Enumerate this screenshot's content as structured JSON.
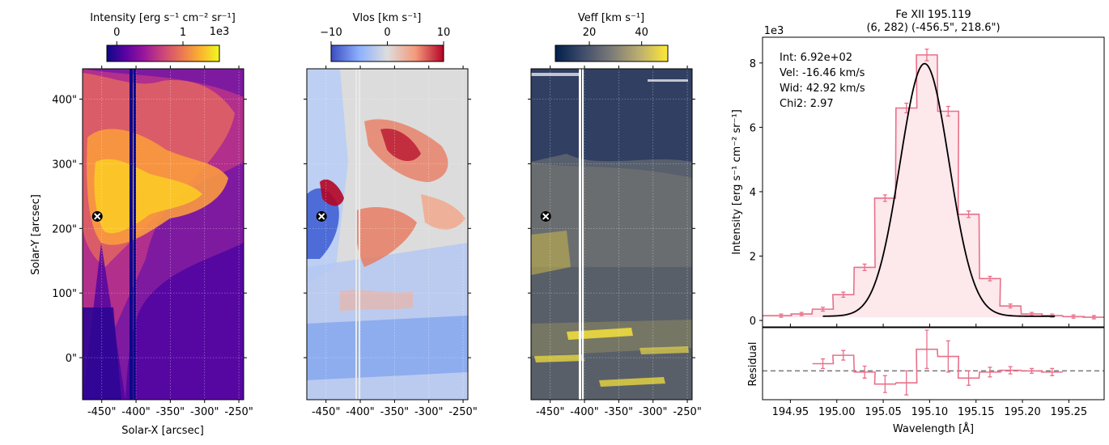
{
  "panels": {
    "intensity": {
      "cbar_label": "Intensity [erg s⁻¹ cm⁻² sr⁻¹]",
      "cbar_ticks": [
        {
          "v": 0,
          "label": "0"
        },
        {
          "v": 1,
          "label": "1"
        }
      ],
      "cbar_range": [
        -0.15,
        1.55
      ],
      "cbar_exponent": "1e3",
      "colormap": [
        "#0d0887",
        "#5b02a3",
        "#9a179b",
        "#cb4678",
        "#eb7852",
        "#fbb32f",
        "#f0f921"
      ]
    },
    "vlos": {
      "cbar_label": "Vlos [km s⁻¹]",
      "cbar_ticks": [
        {
          "v": -10,
          "label": "−10"
        },
        {
          "v": 0,
          "label": "0"
        },
        {
          "v": 10,
          "label": "10"
        }
      ],
      "cbar_range": [
        -10,
        10
      ],
      "colormap": [
        "#3b4cc0",
        "#8db0fe",
        "#dddddd",
        "#f49a7b",
        "#b40426"
      ]
    },
    "veff": {
      "cbar_label": "Veff [km s⁻¹]",
      "cbar_ticks": [
        {
          "v": 20,
          "label": "20"
        },
        {
          "v": 40,
          "label": "40"
        }
      ],
      "cbar_range": [
        7,
        50
      ],
      "colormap": [
        "#00204c",
        "#414d6b",
        "#7c7b78",
        "#bcaf6f",
        "#fee838"
      ]
    }
  },
  "map_axes": {
    "xlabel": "Solar-X [arcsec]",
    "ylabel": "Solar-Y [arcsec]",
    "xticks": [
      {
        "v": -450,
        "label": "-450\""
      },
      {
        "v": -400,
        "label": "-400\""
      },
      {
        "v": -350,
        "label": "-350\""
      },
      {
        "v": -300,
        "label": "-300\""
      },
      {
        "v": -250,
        "label": "-250\""
      }
    ],
    "yticks": [
      {
        "v": 0,
        "label": "0\""
      },
      {
        "v": 100,
        "label": "100\""
      },
      {
        "v": 200,
        "label": "200\""
      },
      {
        "v": 300,
        "label": "300\""
      },
      {
        "v": 400,
        "label": "400\""
      }
    ],
    "xlim": [
      -478,
      -243
    ],
    "ylim": [
      -65,
      447
    ],
    "marker": {
      "x": -456.5,
      "y": 218.6
    }
  },
  "chart_data": {
    "type": "line",
    "title": "Fe XII 195.119",
    "subtitle": "(6, 282) (-456.5\", 218.6\")",
    "ylabel": "Intensity [erg s⁻¹ cm⁻² sr⁻¹]",
    "xlabel": "Wavelength [Å]",
    "residual_ylabel": "Residual",
    "y_exponent": "1e3",
    "xlim": [
      194.92,
      195.288
    ],
    "ylim": [
      -0.2,
      8.8
    ],
    "xticks": [
      {
        "v": 194.95,
        "label": "194.95"
      },
      {
        "v": 195.0,
        "label": "195.00"
      },
      {
        "v": 195.05,
        "label": "195.05"
      },
      {
        "v": 195.1,
        "label": "195.10"
      },
      {
        "v": 195.15,
        "label": "195.15"
      },
      {
        "v": 195.2,
        "label": "195.20"
      },
      {
        "v": 195.25,
        "label": "195.25"
      }
    ],
    "yticks": [
      {
        "v": 0,
        "label": "0"
      },
      {
        "v": 2,
        "label": "2"
      },
      {
        "v": 4,
        "label": "4"
      },
      {
        "v": 6,
        "label": "6"
      },
      {
        "v": 8,
        "label": "8"
      }
    ],
    "annotation": [
      "Int: 6.92e+02",
      "Vel: -16.46 km/s",
      "Wid: 42.92 km/s",
      "Chi2: 2.97"
    ],
    "fit": {
      "center": 195.0946,
      "sigma": 0.0265,
      "amplitude": 7.85,
      "background": 0.13,
      "x_range": [
        194.985,
        195.235
      ]
    },
    "bin_width": 0.0225,
    "data": {
      "x": [
        194.917,
        194.94,
        194.962,
        194.985,
        195.007,
        195.03,
        195.052,
        195.075,
        195.097,
        195.12,
        195.142,
        195.165,
        195.187,
        195.21,
        195.232,
        195.255,
        195.277
      ],
      "y": [
        0.15,
        0.15,
        0.2,
        0.35,
        0.8,
        1.65,
        3.8,
        6.6,
        8.25,
        6.5,
        3.3,
        1.3,
        0.45,
        0.2,
        0.15,
        0.12,
        0.1
      ],
      "err": [
        0.05,
        0.05,
        0.05,
        0.06,
        0.08,
        0.1,
        0.1,
        0.15,
        0.18,
        0.15,
        0.1,
        0.07,
        0.06,
        0.05,
        0.05,
        0.05,
        0.05
      ]
    },
    "residual": {
      "x": [
        194.985,
        195.007,
        195.03,
        195.052,
        195.075,
        195.097,
        195.12,
        195.142,
        195.165,
        195.187,
        195.21,
        195.232
      ],
      "y": [
        0.6,
        1.3,
        -0.1,
        -1.1,
        -1.0,
        1.8,
        1.2,
        -0.6,
        -0.1,
        0.05,
        0.0,
        -0.1
      ],
      "err": [
        0.4,
        0.4,
        0.5,
        0.7,
        1.0,
        1.6,
        1.3,
        0.6,
        0.4,
        0.3,
        0.2,
        0.3
      ],
      "ylim": [
        -2.4,
        3.6
      ]
    },
    "colors": {
      "step": "#e8708a",
      "fill": "#fde8ec",
      "fit": "#000000",
      "zero_line": "#777777"
    }
  }
}
